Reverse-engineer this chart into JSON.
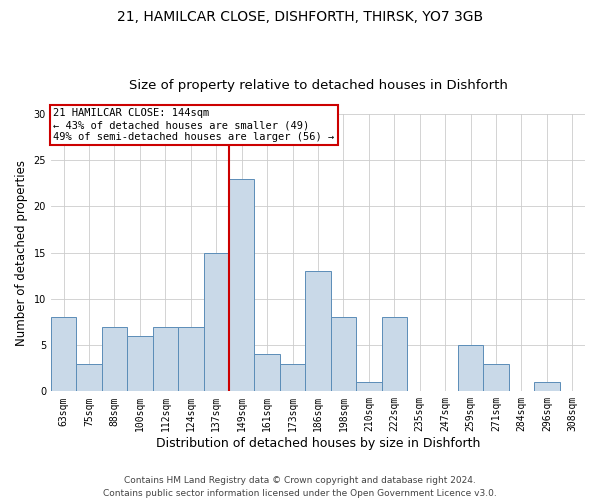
{
  "title1": "21, HAMILCAR CLOSE, DISHFORTH, THIRSK, YO7 3GB",
  "title2": "Size of property relative to detached houses in Dishforth",
  "xlabel": "Distribution of detached houses by size in Dishforth",
  "ylabel": "Number of detached properties",
  "bin_labels": [
    "63sqm",
    "75sqm",
    "88sqm",
    "100sqm",
    "112sqm",
    "124sqm",
    "137sqm",
    "149sqm",
    "161sqm",
    "173sqm",
    "186sqm",
    "198sqm",
    "210sqm",
    "222sqm",
    "235sqm",
    "247sqm",
    "259sqm",
    "271sqm",
    "284sqm",
    "296sqm",
    "308sqm"
  ],
  "bar_heights": [
    8,
    3,
    7,
    6,
    7,
    7,
    15,
    23,
    4,
    3,
    13,
    8,
    1,
    8,
    0,
    0,
    5,
    3,
    0,
    1,
    0
  ],
  "bar_color": "#c9d9e8",
  "bar_edge_color": "#5b8db8",
  "vline_color": "#cc0000",
  "annotation_text": "21 HAMILCAR CLOSE: 144sqm\n← 43% of detached houses are smaller (49)\n49% of semi-detached houses are larger (56) →",
  "annotation_box_color": "#cc0000",
  "annotation_fill": "white",
  "ylim": [
    0,
    30
  ],
  "yticks": [
    0,
    5,
    10,
    15,
    20,
    25,
    30
  ],
  "grid_color": "#cccccc",
  "footer_text": "Contains HM Land Registry data © Crown copyright and database right 2024.\nContains public sector information licensed under the Open Government Licence v3.0.",
  "title1_fontsize": 10,
  "title2_fontsize": 9.5,
  "xlabel_fontsize": 9,
  "ylabel_fontsize": 8.5,
  "tick_fontsize": 7,
  "annot_fontsize": 7.5,
  "footer_fontsize": 6.5
}
